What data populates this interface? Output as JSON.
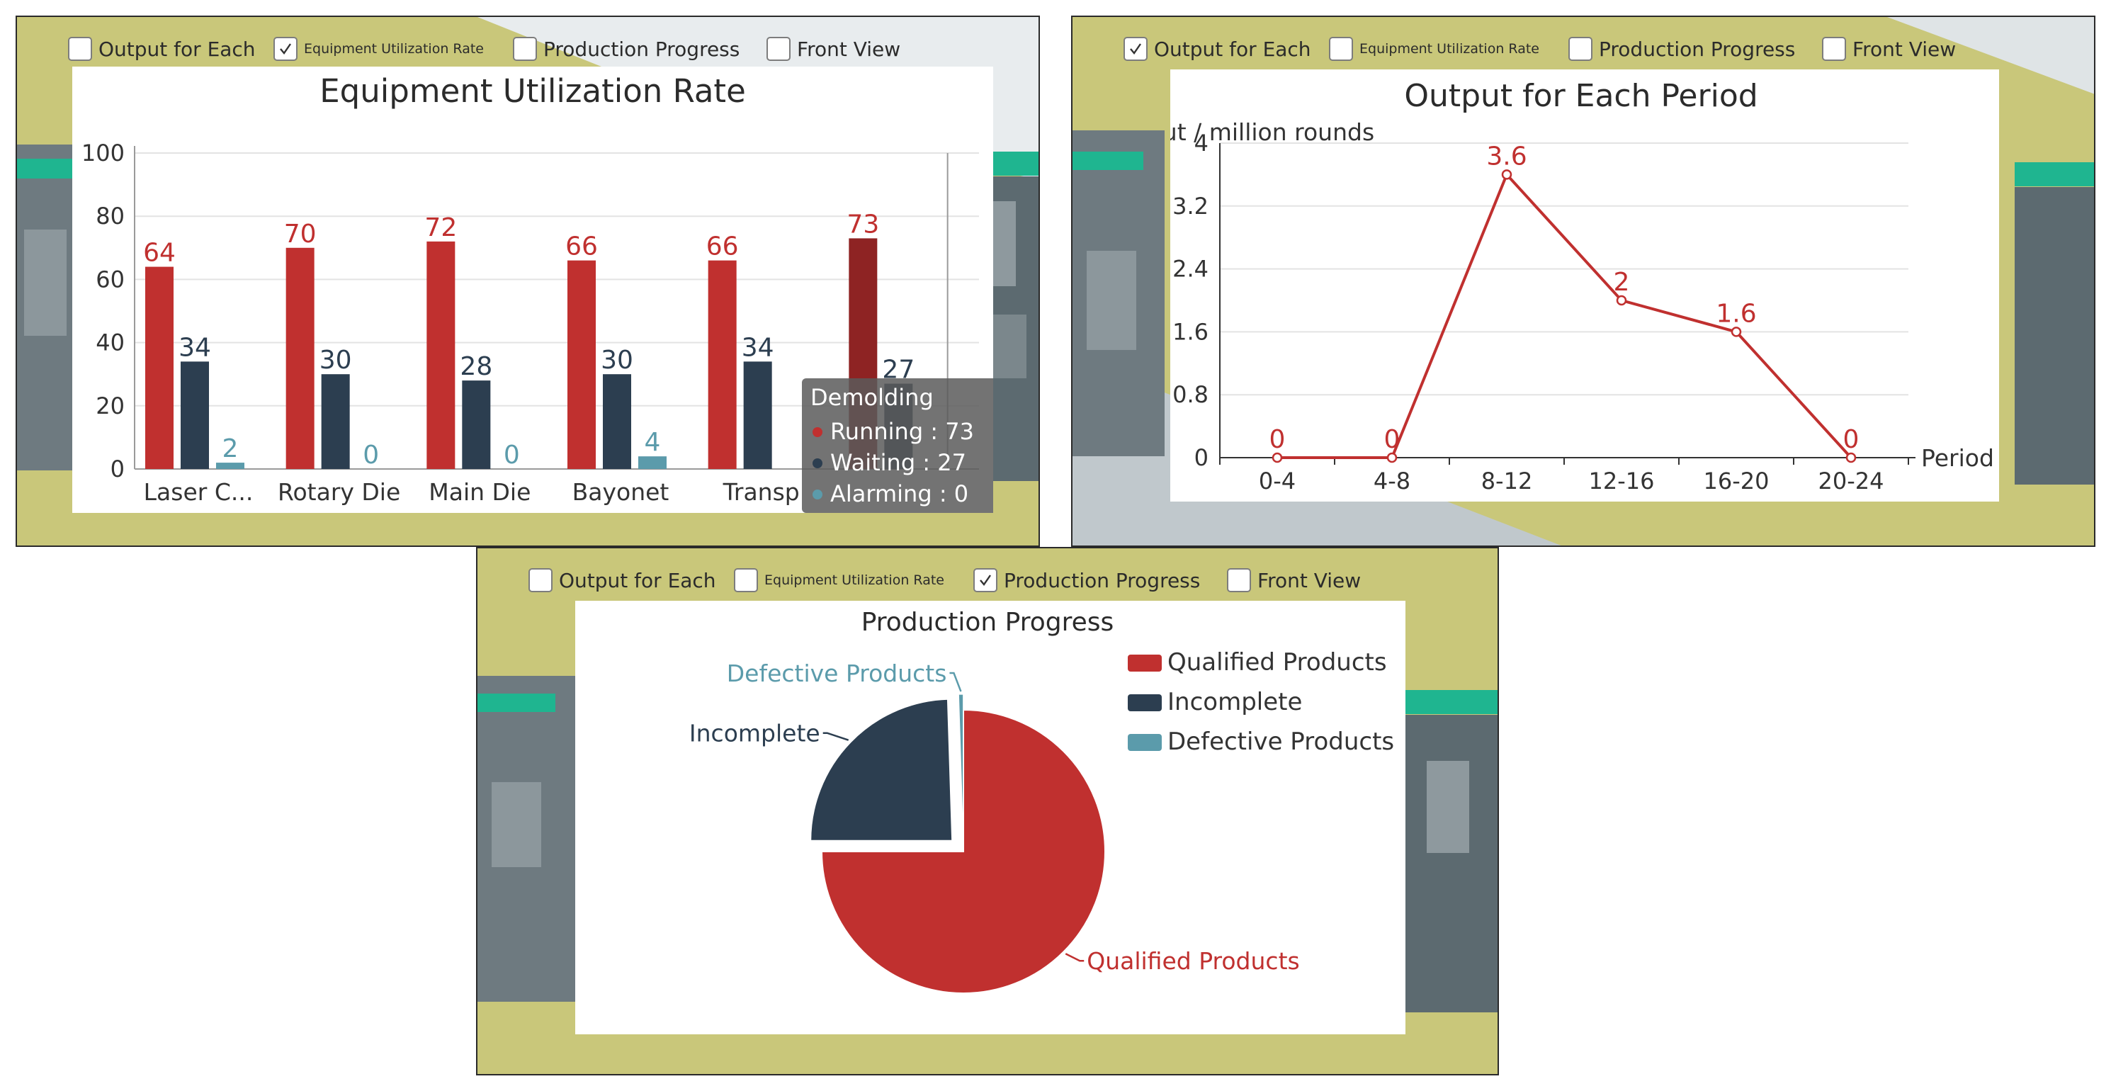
{
  "colors": {
    "running": "#c0302f",
    "waiting": "#2c3e50",
    "alarming": "#5b9bab",
    "scene_yellow": "#c9c77a",
    "teal": "#1fb590"
  },
  "panels": [
    {
      "checkboxes": [
        {
          "label": "Output for Each",
          "checked": false
        },
        {
          "label": "Equipment Utilization Rate",
          "checked": true,
          "small": true
        },
        {
          "label": "Production Progress",
          "checked": false
        },
        {
          "label": "Front View",
          "checked": false
        }
      ]
    },
    {
      "checkboxes": [
        {
          "label": "Output for Each",
          "checked": true
        },
        {
          "label": "Equipment Utilization Rate",
          "checked": false,
          "small": true
        },
        {
          "label": "Production Progress",
          "checked": false
        },
        {
          "label": "Front View",
          "checked": false
        }
      ]
    },
    {
      "checkboxes": [
        {
          "label": "Output for Each",
          "checked": false
        },
        {
          "label": "Equipment Utilization Rate",
          "checked": false,
          "small": true
        },
        {
          "label": "Production Progress",
          "checked": true
        },
        {
          "label": "Front View",
          "checked": false
        }
      ]
    }
  ],
  "chart_data": [
    {
      "type": "bar",
      "title": "Equipment Utilization Rate",
      "categories": [
        "Laser C...",
        "Rotary Die",
        "Main Die",
        "Bayonet",
        "Transp",
        "Demolding"
      ],
      "series": [
        {
          "name": "Running",
          "values": [
            64,
            70,
            72,
            66,
            66,
            73
          ]
        },
        {
          "name": "Waiting",
          "values": [
            34,
            30,
            28,
            30,
            34,
            27
          ]
        },
        {
          "name": "Alarming",
          "values": [
            2,
            0,
            0,
            4,
            0,
            0
          ]
        }
      ],
      "value_labels": {
        "Running": [
          "64",
          "70",
          "72",
          "66",
          "66",
          "73"
        ],
        "Waiting": [
          "34",
          "30",
          "28",
          "30",
          "34",
          "27"
        ],
        "Alarming": [
          "2",
          "0",
          "0",
          "4",
          "",
          ""
        ]
      },
      "ylim": [
        0,
        100
      ],
      "yticks": [
        "0",
        "20",
        "40",
        "60",
        "80",
        "100"
      ],
      "tooltip": {
        "title": "Demolding",
        "rows": [
          "Running : 73",
          "Waiting : 27",
          "Alarming : 0"
        ]
      }
    },
    {
      "type": "line",
      "title": "Output for Each Period",
      "ylabel": "Output / million rounds",
      "xlabel": "Period",
      "x": [
        "0-4",
        "4-8",
        "8-12",
        "12-16",
        "16-20",
        "20-24"
      ],
      "y": [
        0,
        0,
        3.6,
        2,
        1.6,
        0
      ],
      "point_labels": [
        "0",
        "0",
        "3.6",
        "2",
        "1.6",
        "0"
      ],
      "ylim": [
        0,
        4
      ],
      "yticks": [
        "0",
        "0.8",
        "1.6",
        "2.4",
        "3.2",
        "4"
      ]
    },
    {
      "type": "pie",
      "title": "Production Progress",
      "slices": [
        {
          "name": "Qualified Products",
          "value": 75
        },
        {
          "name": "Incomplete",
          "value": 24.5
        },
        {
          "name": "Defective Products",
          "value": 0.5
        }
      ],
      "legend": [
        "Qualified Products",
        "Incomplete",
        "Defective Products"
      ]
    }
  ]
}
